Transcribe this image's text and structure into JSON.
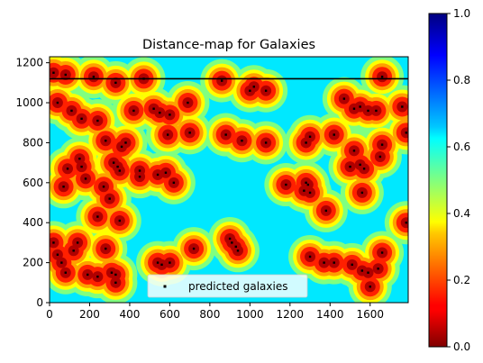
{
  "chart_data": {
    "type": "heatmap",
    "title": "Distance-map for Galaxies",
    "xlabel": "",
    "ylabel": "",
    "xlim": [
      0,
      1790
    ],
    "ylim": [
      0,
      1230
    ],
    "x_ticks": [
      0,
      200,
      400,
      600,
      800,
      1000,
      1200,
      1400,
      1600
    ],
    "x_tick_labels": [
      "0",
      "200",
      "400",
      "600",
      "800",
      "1000",
      "1200",
      "1400",
      "1600"
    ],
    "y_ticks": [
      0,
      200,
      400,
      600,
      800,
      1000,
      1200
    ],
    "y_tick_labels": [
      "0",
      "200",
      "400",
      "600",
      "800",
      "1000",
      "1200"
    ],
    "colormap": "jet_r",
    "colorbar": {
      "range": [
        0.0,
        1.0
      ],
      "ticks": [
        0.0,
        0.2,
        0.4,
        0.6,
        0.8,
        1.0
      ],
      "tick_labels": [
        "0.0",
        "0.2",
        "0.4",
        "0.6",
        "0.8",
        "1.0"
      ]
    },
    "horizontal_line": {
      "y": 1120,
      "color": "#000000"
    },
    "legend": {
      "placement": "lower-center",
      "entries": [
        "predicted galaxies"
      ]
    },
    "series": [
      {
        "name": "predicted galaxies",
        "marker": "square",
        "color": "#000000",
        "points": [
          [
            20,
            1150
          ],
          [
            80,
            1140
          ],
          [
            220,
            1130
          ],
          [
            330,
            1100
          ],
          [
            470,
            1120
          ],
          [
            860,
            1110
          ],
          [
            1020,
            1080
          ],
          [
            1080,
            1060
          ],
          [
            1660,
            1130
          ],
          [
            40,
            1000
          ],
          [
            110,
            960
          ],
          [
            160,
            920
          ],
          [
            240,
            910
          ],
          [
            420,
            960
          ],
          [
            520,
            970
          ],
          [
            550,
            950
          ],
          [
            600,
            940
          ],
          [
            690,
            1000
          ],
          [
            1000,
            1060
          ],
          [
            1470,
            1020
          ],
          [
            1520,
            970
          ],
          [
            1550,
            980
          ],
          [
            1590,
            960
          ],
          [
            1630,
            960
          ],
          [
            1760,
            980
          ],
          [
            280,
            810
          ],
          [
            360,
            780
          ],
          [
            380,
            800
          ],
          [
            590,
            840
          ],
          [
            700,
            850
          ],
          [
            880,
            840
          ],
          [
            960,
            810
          ],
          [
            1080,
            800
          ],
          [
            1280,
            800
          ],
          [
            1300,
            830
          ],
          [
            1420,
            840
          ],
          [
            1520,
            760
          ],
          [
            1660,
            790
          ],
          [
            1780,
            850
          ],
          [
            90,
            670
          ],
          [
            150,
            720
          ],
          [
            160,
            680
          ],
          [
            180,
            620
          ],
          [
            320,
            700
          ],
          [
            340,
            680
          ],
          [
            350,
            660
          ],
          [
            450,
            660
          ],
          [
            540,
            640
          ],
          [
            580,
            650
          ],
          [
            1180,
            590
          ],
          [
            1280,
            600
          ],
          [
            1290,
            590
          ],
          [
            1300,
            550
          ],
          [
            1500,
            680
          ],
          [
            1550,
            690
          ],
          [
            1570,
            670
          ],
          [
            1650,
            730
          ],
          [
            70,
            580
          ],
          [
            270,
            580
          ],
          [
            300,
            520
          ],
          [
            450,
            630
          ],
          [
            620,
            600
          ],
          [
            1270,
            560
          ],
          [
            1380,
            460
          ],
          [
            1560,
            550
          ],
          [
            240,
            430
          ],
          [
            350,
            410
          ],
          [
            1780,
            400
          ],
          [
            20,
            300
          ],
          [
            40,
            240
          ],
          [
            60,
            200
          ],
          [
            80,
            150
          ],
          [
            120,
            260
          ],
          [
            140,
            300
          ],
          [
            190,
            140
          ],
          [
            240,
            130
          ],
          [
            280,
            270
          ],
          [
            310,
            150
          ],
          [
            330,
            140
          ],
          [
            330,
            100
          ],
          [
            540,
            200
          ],
          [
            560,
            190
          ],
          [
            600,
            200
          ],
          [
            720,
            270
          ],
          [
            900,
            320
          ],
          [
            910,
            300
          ],
          [
            930,
            280
          ],
          [
            940,
            260
          ],
          [
            1300,
            230
          ],
          [
            1370,
            200
          ],
          [
            1420,
            200
          ],
          [
            1510,
            190
          ],
          [
            1560,
            160
          ],
          [
            1590,
            150
          ],
          [
            1600,
            80
          ],
          [
            1640,
            170
          ],
          [
            1660,
            250
          ]
        ]
      }
    ]
  }
}
